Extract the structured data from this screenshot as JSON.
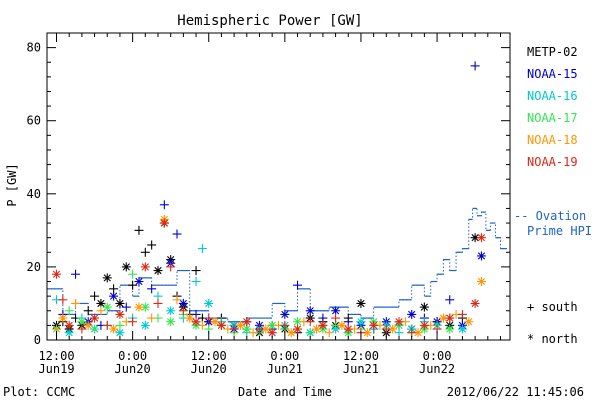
{
  "chart_data": {
    "type": "scatter",
    "title": "Hemispheric Power [GW]",
    "ylabel": "P [GW]",
    "xlabel": "Date and Time",
    "ylim": [
      0,
      84
    ],
    "y_ticks": [
      0,
      20,
      40,
      60,
      80
    ],
    "x_ticks": [
      {
        "t": 0,
        "time": "12:00",
        "date": "Jun19"
      },
      {
        "t": 12,
        "time": "0:00",
        "date": "Jun20"
      },
      {
        "t": 24,
        "time": "12:00",
        "date": "Jun20"
      },
      {
        "t": 36,
        "time": "0:00",
        "date": "Jun21"
      },
      {
        "t": 48,
        "time": "12:00",
        "date": "Jun21"
      },
      {
        "t": 60,
        "time": "0:00",
        "date": "Jun22"
      }
    ],
    "xlim_hours": [
      -1.5,
      71.5
    ],
    "grid": false,
    "legend_placement": "right",
    "series": [
      {
        "name": "METP-02",
        "color": "#000000",
        "points": [
          [
            0,
            4,
            "n"
          ],
          [
            1,
            5,
            "s"
          ],
          [
            2,
            3,
            "n"
          ],
          [
            3,
            6,
            "s"
          ],
          [
            4,
            4,
            "n"
          ],
          [
            5,
            8,
            "s"
          ],
          [
            6,
            12,
            "s"
          ],
          [
            7,
            10,
            "n"
          ],
          [
            8,
            17,
            "n"
          ],
          [
            9,
            14,
            "s"
          ],
          [
            10,
            10,
            "n"
          ],
          [
            11,
            20,
            "n"
          ],
          [
            12,
            15,
            "s"
          ],
          [
            13,
            30,
            "s"
          ],
          [
            14,
            24,
            "s"
          ],
          [
            15,
            26,
            "s"
          ],
          [
            16,
            19,
            "n"
          ],
          [
            17,
            32,
            "n"
          ],
          [
            18,
            22,
            "n"
          ],
          [
            19,
            12,
            "s"
          ],
          [
            20,
            9,
            "n"
          ],
          [
            21,
            7,
            "s"
          ],
          [
            22,
            19,
            "s"
          ],
          [
            23,
            6,
            "s"
          ],
          [
            24,
            5,
            "n"
          ],
          [
            26,
            6,
            "s"
          ],
          [
            28,
            4,
            "n"
          ],
          [
            30,
            3,
            "s"
          ],
          [
            32,
            2,
            "n"
          ],
          [
            34,
            4,
            "s"
          ],
          [
            36,
            3,
            "n"
          ],
          [
            38,
            2,
            "s"
          ],
          [
            40,
            6,
            "n"
          ],
          [
            42,
            5,
            "s"
          ],
          [
            44,
            4,
            "n"
          ],
          [
            46,
            6,
            "s"
          ],
          [
            48,
            10,
            "n"
          ],
          [
            50,
            3,
            "s"
          ],
          [
            52,
            2,
            "n"
          ],
          [
            54,
            4,
            "s"
          ],
          [
            56,
            3,
            "n"
          ],
          [
            58,
            9,
            "n"
          ],
          [
            60,
            5,
            "s"
          ],
          [
            62,
            4,
            "n"
          ],
          [
            64,
            6,
            "s"
          ],
          [
            66,
            28,
            "n"
          ]
        ]
      },
      {
        "name": "NOAA-15",
        "color": "#0000cc",
        "points": [
          [
            1,
            7,
            "s"
          ],
          [
            3,
            18,
            "s"
          ],
          [
            5,
            5,
            "n"
          ],
          [
            7,
            4,
            "s"
          ],
          [
            9,
            12,
            "n"
          ],
          [
            11,
            9,
            "s"
          ],
          [
            13,
            16,
            "n"
          ],
          [
            15,
            14,
            "s"
          ],
          [
            17,
            37,
            "s"
          ],
          [
            18,
            21,
            "n"
          ],
          [
            19,
            29,
            "s"
          ],
          [
            20,
            10,
            "n"
          ],
          [
            22,
            7,
            "s"
          ],
          [
            24,
            5,
            "n"
          ],
          [
            26,
            4,
            "s"
          ],
          [
            28,
            3,
            "n"
          ],
          [
            30,
            5,
            "s"
          ],
          [
            32,
            4,
            "n"
          ],
          [
            34,
            3,
            "s"
          ],
          [
            36,
            7,
            "n"
          ],
          [
            38,
            15,
            "s"
          ],
          [
            40,
            8,
            "n"
          ],
          [
            42,
            6,
            "s"
          ],
          [
            44,
            8,
            "n"
          ],
          [
            46,
            5,
            "s"
          ],
          [
            48,
            4,
            "n"
          ],
          [
            50,
            3,
            "s"
          ],
          [
            52,
            5,
            "n"
          ],
          [
            54,
            4,
            "s"
          ],
          [
            56,
            7,
            "n"
          ],
          [
            58,
            6,
            "s"
          ],
          [
            60,
            5,
            "n"
          ],
          [
            62,
            11,
            "s"
          ],
          [
            64,
            4,
            "n"
          ],
          [
            66,
            75,
            "s"
          ],
          [
            67,
            23,
            "n"
          ]
        ]
      },
      {
        "name": "NOAA-16",
        "color": "#00c8d2",
        "points": [
          [
            0,
            11,
            "s"
          ],
          [
            2,
            2,
            "n"
          ],
          [
            4,
            6,
            "s"
          ],
          [
            6,
            3,
            "n"
          ],
          [
            8,
            4,
            "s"
          ],
          [
            10,
            2,
            "n"
          ],
          [
            12,
            6,
            "s"
          ],
          [
            14,
            4,
            "n"
          ],
          [
            16,
            12,
            "s"
          ],
          [
            18,
            8,
            "n"
          ],
          [
            20,
            6,
            "s"
          ],
          [
            22,
            16,
            "s"
          ],
          [
            23,
            25,
            "s"
          ],
          [
            24,
            10,
            "n"
          ],
          [
            26,
            5,
            "s"
          ],
          [
            28,
            4,
            "n"
          ],
          [
            30,
            2,
            "s"
          ],
          [
            32,
            3,
            "n"
          ],
          [
            34,
            2,
            "s"
          ],
          [
            36,
            4,
            "n"
          ],
          [
            38,
            3,
            "s"
          ],
          [
            40,
            2,
            "n"
          ],
          [
            42,
            4,
            "s"
          ],
          [
            44,
            3,
            "n"
          ],
          [
            46,
            2,
            "s"
          ],
          [
            48,
            5,
            "n"
          ],
          [
            50,
            3,
            "s"
          ],
          [
            52,
            4,
            "n"
          ],
          [
            54,
            2,
            "s"
          ],
          [
            56,
            3,
            "n"
          ],
          [
            58,
            5,
            "s"
          ],
          [
            60,
            4,
            "n"
          ],
          [
            62,
            6,
            "s"
          ],
          [
            64,
            3,
            "n"
          ]
        ]
      },
      {
        "name": "NOAA-17",
        "color": "#32e650",
        "points": [
          [
            0,
            3,
            "n"
          ],
          [
            2,
            8,
            "s"
          ],
          [
            4,
            5,
            "n"
          ],
          [
            6,
            3,
            "s"
          ],
          [
            8,
            9,
            "n"
          ],
          [
            10,
            4,
            "s"
          ],
          [
            12,
            18,
            "s"
          ],
          [
            14,
            9,
            "n"
          ],
          [
            16,
            6,
            "s"
          ],
          [
            18,
            5,
            "n"
          ],
          [
            20,
            7,
            "s"
          ],
          [
            22,
            4,
            "n"
          ],
          [
            24,
            3,
            "s"
          ],
          [
            26,
            4,
            "n"
          ],
          [
            28,
            2,
            "s"
          ],
          [
            30,
            3,
            "n"
          ],
          [
            32,
            2,
            "s"
          ],
          [
            34,
            4,
            "n"
          ],
          [
            36,
            3,
            "s"
          ],
          [
            38,
            5,
            "n"
          ],
          [
            40,
            2,
            "s"
          ],
          [
            42,
            3,
            "n"
          ],
          [
            44,
            4,
            "s"
          ],
          [
            46,
            2,
            "n"
          ],
          [
            48,
            3,
            "s"
          ],
          [
            50,
            5,
            "n"
          ],
          [
            52,
            3,
            "s"
          ],
          [
            54,
            4,
            "n"
          ],
          [
            56,
            2,
            "s"
          ],
          [
            58,
            3,
            "n"
          ],
          [
            60,
            4,
            "s"
          ],
          [
            62,
            3,
            "n"
          ]
        ]
      },
      {
        "name": "NOAA-18",
        "color": "#ff9600",
        "points": [
          [
            0,
            3,
            "s"
          ],
          [
            1,
            6,
            "n"
          ],
          [
            3,
            10,
            "s"
          ],
          [
            5,
            4,
            "n"
          ],
          [
            7,
            8,
            "s"
          ],
          [
            9,
            3,
            "n"
          ],
          [
            11,
            5,
            "s"
          ],
          [
            13,
            9,
            "n"
          ],
          [
            15,
            6,
            "s"
          ],
          [
            17,
            33,
            "n"
          ],
          [
            19,
            11,
            "s"
          ],
          [
            21,
            6,
            "n"
          ],
          [
            23,
            4,
            "s"
          ],
          [
            25,
            5,
            "n"
          ],
          [
            27,
            3,
            "s"
          ],
          [
            29,
            4,
            "n"
          ],
          [
            31,
            2,
            "s"
          ],
          [
            33,
            3,
            "n"
          ],
          [
            35,
            4,
            "s"
          ],
          [
            37,
            2,
            "n"
          ],
          [
            39,
            5,
            "s"
          ],
          [
            41,
            3,
            "n"
          ],
          [
            43,
            2,
            "s"
          ],
          [
            45,
            4,
            "n"
          ],
          [
            47,
            3,
            "s"
          ],
          [
            49,
            2,
            "n"
          ],
          [
            51,
            4,
            "s"
          ],
          [
            53,
            3,
            "n"
          ],
          [
            55,
            5,
            "s"
          ],
          [
            57,
            2,
            "n"
          ],
          [
            59,
            4,
            "s"
          ],
          [
            61,
            6,
            "n"
          ],
          [
            63,
            7,
            "s"
          ],
          [
            65,
            5,
            "n"
          ],
          [
            67,
            16,
            "n"
          ]
        ]
      },
      {
        "name": "NOAA-19",
        "color": "#dc2814",
        "points": [
          [
            0,
            18,
            "n"
          ],
          [
            1,
            11,
            "s"
          ],
          [
            2,
            4,
            "n"
          ],
          [
            4,
            3,
            "s"
          ],
          [
            6,
            6,
            "n"
          ],
          [
            8,
            4,
            "s"
          ],
          [
            10,
            7,
            "n"
          ],
          [
            12,
            5,
            "s"
          ],
          [
            14,
            20,
            "n"
          ],
          [
            16,
            10,
            "s"
          ],
          [
            17,
            32,
            "n"
          ],
          [
            18,
            20,
            "s"
          ],
          [
            20,
            8,
            "s"
          ],
          [
            22,
            5,
            "n"
          ],
          [
            24,
            6,
            "s"
          ],
          [
            26,
            4,
            "n"
          ],
          [
            28,
            3,
            "s"
          ],
          [
            30,
            5,
            "n"
          ],
          [
            32,
            3,
            "s"
          ],
          [
            34,
            2,
            "n"
          ],
          [
            36,
            4,
            "s"
          ],
          [
            38,
            3,
            "n"
          ],
          [
            40,
            5,
            "s"
          ],
          [
            42,
            4,
            "n"
          ],
          [
            44,
            6,
            "s"
          ],
          [
            46,
            3,
            "n"
          ],
          [
            48,
            2,
            "s"
          ],
          [
            50,
            4,
            "n"
          ],
          [
            52,
            3,
            "s"
          ],
          [
            54,
            5,
            "n"
          ],
          [
            56,
            2,
            "s"
          ],
          [
            58,
            4,
            "n"
          ],
          [
            60,
            3,
            "s"
          ],
          [
            62,
            6,
            "n"
          ],
          [
            64,
            7,
            "s"
          ],
          [
            66,
            10,
            "n"
          ],
          [
            67,
            28,
            "n"
          ]
        ]
      }
    ],
    "ovation": {
      "name": "-- Ovation\nPrime HPI",
      "color": "#1e64c8",
      "steps": [
        [
          -1.5,
          14
        ],
        [
          0,
          14
        ],
        [
          1,
          7
        ],
        [
          3,
          10
        ],
        [
          5,
          7
        ],
        [
          8,
          8
        ],
        [
          10,
          15
        ],
        [
          12,
          12
        ],
        [
          13,
          17
        ],
        [
          15,
          15
        ],
        [
          19,
          19
        ],
        [
          21,
          8
        ],
        [
          24,
          6
        ],
        [
          27,
          5
        ],
        [
          30,
          6
        ],
        [
          34,
          10
        ],
        [
          36,
          8
        ],
        [
          38,
          14
        ],
        [
          40,
          8
        ],
        [
          43,
          9
        ],
        [
          46,
          7
        ],
        [
          48,
          6
        ],
        [
          50,
          9
        ],
        [
          52,
          9
        ],
        [
          54,
          11
        ],
        [
          56,
          15
        ],
        [
          58,
          12
        ],
        [
          59,
          16
        ],
        [
          60,
          18
        ],
        [
          61,
          22
        ],
        [
          62,
          19
        ],
        [
          63,
          24
        ],
        [
          64,
          25
        ],
        [
          65,
          33
        ],
        [
          65.6,
          36
        ],
        [
          66.3,
          34
        ],
        [
          67,
          35
        ],
        [
          67.7,
          30
        ],
        [
          68.4,
          32
        ],
        [
          69.2,
          28
        ],
        [
          70,
          25
        ]
      ]
    },
    "legend_symbols": {
      "south": {
        "symbol": "+",
        "label": "south"
      },
      "north": {
        "symbol": "*",
        "label": "north"
      }
    }
  },
  "footer": {
    "left": "Plot: CCMC",
    "right": "2012/06/22 11:45:06"
  },
  "colors": {
    "axis": "#000000",
    "background": "#ffffff"
  }
}
